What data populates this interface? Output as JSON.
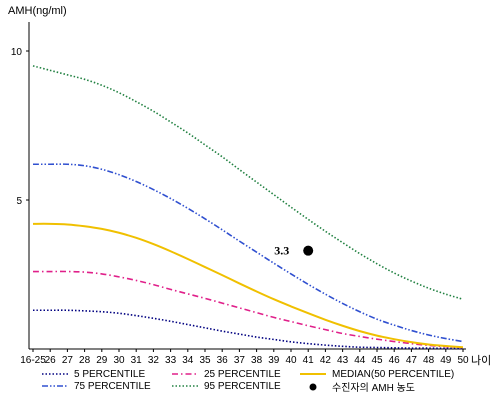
{
  "chart_data": {
    "type": "line",
    "ylabel": "AMH(ng/ml)",
    "xlabel": "나이",
    "ylim": [
      0,
      11
    ],
    "yticks": [
      "5",
      "10"
    ],
    "categories": [
      "16-25",
      "26",
      "27",
      "28",
      "29",
      "30",
      "31",
      "32",
      "33",
      "34",
      "35",
      "36",
      "37",
      "38",
      "39",
      "40",
      "41",
      "42",
      "43",
      "44",
      "45",
      "46",
      "47",
      "48",
      "49",
      "50"
    ],
    "series": [
      {
        "name": "5 PERCENTILE",
        "color": "#000080",
        "dash": "dot",
        "values": [
          1.3,
          1.3,
          1.3,
          1.28,
          1.25,
          1.2,
          1.12,
          1.03,
          0.93,
          0.82,
          0.71,
          0.6,
          0.5,
          0.4,
          0.32,
          0.24,
          0.18,
          0.13,
          0.09,
          0.06,
          0.05,
          0.04,
          0.03,
          0.03,
          0.02,
          0.02
        ]
      },
      {
        "name": "25 PERCENTILE",
        "color": "#e0208a",
        "dash": "dashdot",
        "values": [
          2.6,
          2.6,
          2.6,
          2.58,
          2.52,
          2.42,
          2.3,
          2.16,
          2.0,
          1.85,
          1.7,
          1.54,
          1.38,
          1.22,
          1.06,
          0.92,
          0.78,
          0.65,
          0.52,
          0.42,
          0.33,
          0.25,
          0.18,
          0.12,
          0.08,
          0.05
        ]
      },
      {
        "name": "MEDIAN(50 PERCENTILE)",
        "color": "#f0c000",
        "dash": "solid",
        "values": [
          4.2,
          4.2,
          4.18,
          4.12,
          4.03,
          3.9,
          3.73,
          3.52,
          3.28,
          3.02,
          2.75,
          2.48,
          2.2,
          1.93,
          1.67,
          1.43,
          1.2,
          0.98,
          0.78,
          0.6,
          0.45,
          0.33,
          0.23,
          0.15,
          0.1,
          0.06
        ]
      },
      {
        "name": "75 PERCENTILE",
        "color": "#3050d0",
        "dash": "dashdotdot",
        "values": [
          6.2,
          6.2,
          6.2,
          6.15,
          6.03,
          5.85,
          5.62,
          5.35,
          5.05,
          4.72,
          4.37,
          4.0,
          3.62,
          3.25,
          2.88,
          2.52,
          2.17,
          1.84,
          1.53,
          1.25,
          1.0,
          0.8,
          0.62,
          0.47,
          0.35,
          0.25
        ]
      },
      {
        "name": "95 PERCENTILE",
        "color": "#208040",
        "dash": "dot",
        "values": [
          9.5,
          9.35,
          9.2,
          9.05,
          8.85,
          8.6,
          8.3,
          7.98,
          7.62,
          7.25,
          6.85,
          6.45,
          6.02,
          5.6,
          5.18,
          4.76,
          4.35,
          3.95,
          3.57,
          3.2,
          2.86,
          2.55,
          2.28,
          2.04,
          1.84,
          1.67
        ]
      }
    ],
    "point": {
      "label": "3.3",
      "x": "41",
      "y": 3.3,
      "legend": "수진자의 AMH 농도"
    },
    "legend_position": "bottom",
    "grid": false
  }
}
